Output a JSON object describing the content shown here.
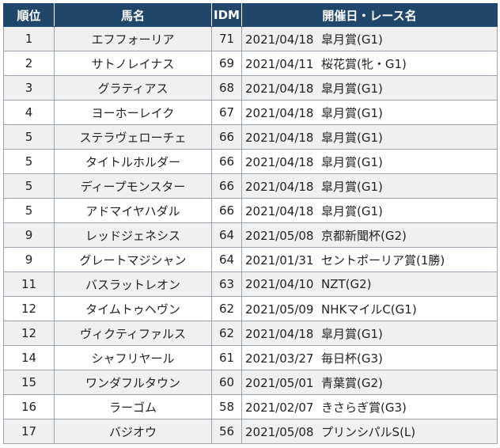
{
  "headers": {
    "rank": "順位",
    "name": "馬名",
    "idm": "IDM",
    "race": "開催日・レース名"
  },
  "rows": [
    {
      "rank": "1",
      "name": "エフフォーリア",
      "idm": "71",
      "date": "2021/04/18",
      "race": "皐月賞(G1)"
    },
    {
      "rank": "2",
      "name": "サトノレイナス",
      "idm": "69",
      "date": "2021/04/11",
      "race": "桜花賞(牝・G1)"
    },
    {
      "rank": "3",
      "name": "グラティアス",
      "idm": "68",
      "date": "2021/04/18",
      "race": "皐月賞(G1)"
    },
    {
      "rank": "4",
      "name": "ヨーホーレイク",
      "idm": "67",
      "date": "2021/04/18",
      "race": "皐月賞(G1)"
    },
    {
      "rank": "5",
      "name": "ステラヴェローチェ",
      "idm": "66",
      "date": "2021/04/18",
      "race": "皐月賞(G1)"
    },
    {
      "rank": "5",
      "name": "タイトルホルダー",
      "idm": "66",
      "date": "2021/04/18",
      "race": "皐月賞(G1)"
    },
    {
      "rank": "5",
      "name": "ディープモンスター",
      "idm": "66",
      "date": "2021/04/18",
      "race": "皐月賞(G1)"
    },
    {
      "rank": "5",
      "name": "アドマイヤハダル",
      "idm": "66",
      "date": "2021/04/18",
      "race": "皐月賞(G1)"
    },
    {
      "rank": "9",
      "name": "レッドジェネシス",
      "idm": "64",
      "date": "2021/05/08",
      "race": "京都新聞杯(G2)"
    },
    {
      "rank": "9",
      "name": "グレートマジシャン",
      "idm": "64",
      "date": "2021/01/31",
      "race": "セントポーリア賞(1勝)"
    },
    {
      "rank": "11",
      "name": "バスラットレオン",
      "idm": "63",
      "date": "2021/04/10",
      "race": "NZT(G2)"
    },
    {
      "rank": "12",
      "name": "タイムトゥヘヴン",
      "idm": "62",
      "date": "2021/05/09",
      "race": "NHKマイルC(G1)"
    },
    {
      "rank": "12",
      "name": "ヴィクティファルス",
      "idm": "62",
      "date": "2021/04/18",
      "race": "皐月賞(G1)"
    },
    {
      "rank": "14",
      "name": "シャフリヤール",
      "idm": "61",
      "date": "2021/03/27",
      "race": "毎日杯(G3)"
    },
    {
      "rank": "15",
      "name": "ワンダフルタウン",
      "idm": "60",
      "date": "2021/05/01",
      "race": "青葉賞(G2)"
    },
    {
      "rank": "16",
      "name": "ラーゴム",
      "idm": "58",
      "date": "2021/02/07",
      "race": "きさらぎ賞(G3)"
    },
    {
      "rank": "17",
      "name": "バジオウ",
      "idm": "56",
      "date": "2021/05/08",
      "race": "プリンシパルS(L)"
    }
  ]
}
